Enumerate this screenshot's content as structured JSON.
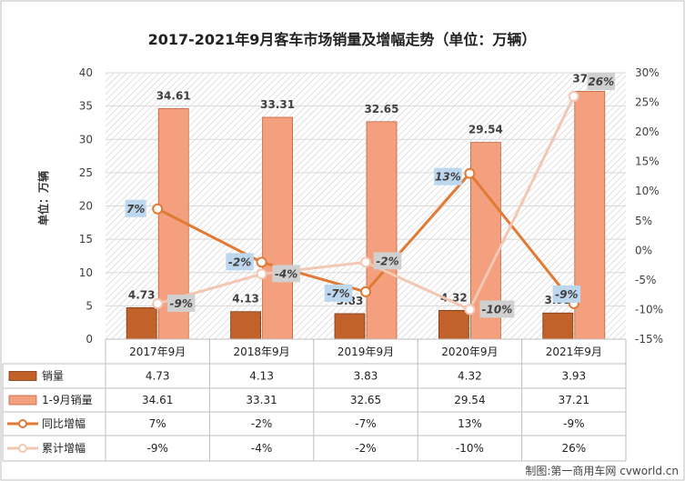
{
  "chart_data": {
    "type": "bar",
    "title": "2017-2021年9月客车市场销量及增幅走势（单位：万辆）",
    "ylabel": "单位：万辆",
    "categories": [
      "2017年9月",
      "2018年9月",
      "2019年9月",
      "2020年9月",
      "2021年9月"
    ],
    "ylim": [
      0,
      40
    ],
    "yticks": [
      0,
      5,
      10,
      15,
      20,
      25,
      30,
      35,
      40
    ],
    "y2lim": [
      -15,
      30
    ],
    "y2ticks": [
      "-15%",
      "-10%",
      "-5%",
      "0%",
      "5%",
      "10%",
      "15%",
      "20%",
      "25%",
      "30%"
    ],
    "bar_series": [
      {
        "name": "销量",
        "values": [
          4.73,
          4.13,
          3.83,
          4.32,
          3.93
        ],
        "value_labels": [
          "4.73",
          "4.13",
          "3.83",
          "4.32",
          "3.93"
        ],
        "color": "#C0622A"
      },
      {
        "name": "1-9月销量",
        "values": [
          34.61,
          33.31,
          32.65,
          29.54,
          37.21
        ],
        "value_labels": [
          "34.61",
          "33.31",
          "32.65",
          "29.54",
          "37.21"
        ],
        "color": "#F4A07E"
      }
    ],
    "line_series": [
      {
        "name": "同比增幅",
        "values": [
          7,
          -2,
          -7,
          13,
          -9
        ],
        "value_labels": [
          "7%",
          "-2%",
          "-7%",
          "13%",
          "-9%"
        ],
        "color": "#E07A34",
        "label_bg": "#BDD7EE"
      },
      {
        "name": "累计增幅",
        "values": [
          -9,
          -4,
          -2,
          -10,
          26
        ],
        "value_labels": [
          "-9%",
          "-4%",
          "-2%",
          "-10%",
          "26%"
        ],
        "color": "#F2C7B4",
        "label_bg": "#D0D0D0"
      }
    ],
    "grid": true,
    "legend": "table-below",
    "data_table": true
  },
  "credit": "制图:第一商用车网 cvworld.cn"
}
